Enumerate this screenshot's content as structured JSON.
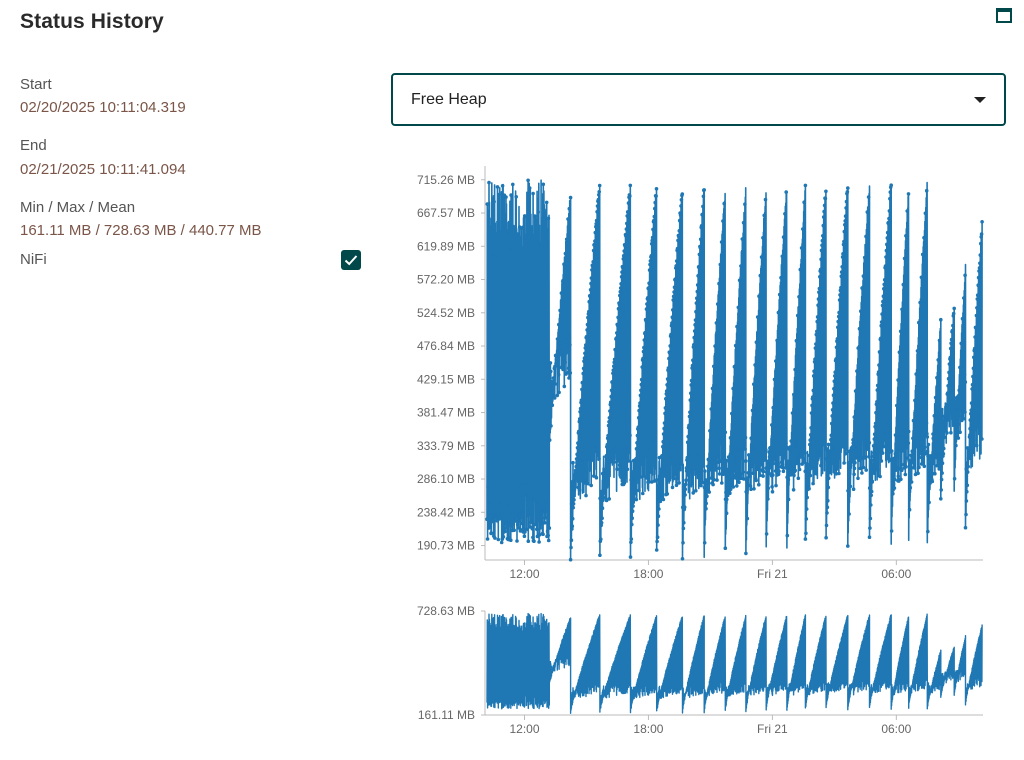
{
  "title": "Status History",
  "icons": {
    "maximize": "maximize-icon",
    "check": "check-icon",
    "dropdown": "chevron-down-icon"
  },
  "details": {
    "start_label": "Start",
    "start_value": "02/20/2025 10:11:04.319",
    "end_label": "End",
    "end_value": "02/21/2025 10:11:41.094",
    "stats_label": "Min / Max / Mean",
    "stats_value": "161.11 MB / 728.63 MB / 440.77 MB",
    "node_label": "NiFi",
    "node_checked": true
  },
  "metric_select": {
    "selected": "Free Heap"
  },
  "colors": {
    "accent": "#004849",
    "series": "#1f77b4",
    "value_text": "#7a5548"
  },
  "chart_data": [
    {
      "type": "line",
      "ylabel_ticks": [
        "190.73 MB",
        "238.42 MB",
        "286.10 MB",
        "333.79 MB",
        "381.47 MB",
        "429.15 MB",
        "476.84 MB",
        "524.52 MB",
        "572.20 MB",
        "619.89 MB",
        "667.57 MB",
        "715.26 MB"
      ],
      "ytick_values": [
        190.73,
        238.42,
        286.1,
        333.79,
        381.47,
        429.15,
        476.84,
        524.52,
        572.2,
        619.89,
        667.57,
        715.26
      ],
      "xtick_labels": [
        "12:00",
        "18:00",
        "Fri 21",
        "06:00"
      ],
      "xtick_hours": [
        12,
        18,
        24,
        30
      ],
      "x_range_hours": [
        10.185,
        34.195
      ],
      "ylim": [
        170,
        735
      ],
      "markers": true,
      "series": [
        {
          "min_mb": 161.11,
          "max_mb": 728.63,
          "mean_mb": 440.77,
          "phase1": {
            "until_hour": 13.2,
            "low_mb": [
              195,
              240
            ],
            "high_mb": [
              620,
              715
            ]
          },
          "gc_cycles": [
            {
              "start_hour": 13.2,
              "start_mb": 330,
              "end_hour": 14.23,
              "end_mb": 700
            },
            {
              "start_hour": 14.23,
              "start_mb": 180,
              "end_hour": 15.65,
              "end_mb": 715
            },
            {
              "start_hour": 15.65,
              "start_mb": 185,
              "end_hour": 17.13,
              "end_mb": 713
            },
            {
              "start_hour": 17.13,
              "start_mb": 182,
              "end_hour": 18.4,
              "end_mb": 712
            },
            {
              "start_hour": 18.4,
              "start_mb": 185,
              "end_hour": 19.65,
              "end_mb": 710
            },
            {
              "start_hour": 19.65,
              "start_mb": 182,
              "end_hour": 20.7,
              "end_mb": 712
            },
            {
              "start_hour": 20.7,
              "start_mb": 185,
              "end_hour": 21.72,
              "end_mb": 710
            },
            {
              "start_hour": 21.72,
              "start_mb": 190,
              "end_hour": 22.72,
              "end_mb": 712
            },
            {
              "start_hour": 22.72,
              "start_mb": 190,
              "end_hour": 23.7,
              "end_mb": 713
            },
            {
              "start_hour": 23.7,
              "start_mb": 195,
              "end_hour": 24.7,
              "end_mb": 713
            },
            {
              "start_hour": 24.7,
              "start_mb": 195,
              "end_hour": 25.6,
              "end_mb": 714
            },
            {
              "start_hour": 25.6,
              "start_mb": 200,
              "end_hour": 26.6,
              "end_mb": 713
            },
            {
              "start_hour": 26.6,
              "start_mb": 205,
              "end_hour": 27.65,
              "end_mb": 714
            },
            {
              "start_hour": 27.65,
              "start_mb": 200,
              "end_hour": 28.7,
              "end_mb": 713
            },
            {
              "start_hour": 28.7,
              "start_mb": 205,
              "end_hour": 29.75,
              "end_mb": 715
            },
            {
              "start_hour": 29.75,
              "start_mb": 200,
              "end_hour": 30.6,
              "end_mb": 712
            },
            {
              "start_hour": 30.6,
              "start_mb": 210,
              "end_hour": 31.5,
              "end_mb": 718
            },
            {
              "start_hour": 31.5,
              "start_mb": 205,
              "end_hour": 32.15,
              "end_mb": 520
            },
            {
              "start_hour": 32.15,
              "start_mb": 260,
              "end_hour": 32.8,
              "end_mb": 540
            },
            {
              "start_hour": 32.8,
              "start_mb": 270,
              "end_hour": 33.35,
              "end_mb": 600
            },
            {
              "start_hour": 33.35,
              "start_mb": 220,
              "end_hour": 34.15,
              "end_mb": 655
            }
          ]
        }
      ]
    },
    {
      "type": "area",
      "ylabel_ticks": [
        "161.11 MB",
        "728.63 MB"
      ],
      "ytick_values": [
        161.11,
        728.63
      ],
      "xtick_labels": [
        "12:00",
        "18:00",
        "Fri 21",
        "06:00"
      ],
      "xtick_hours": [
        12,
        18,
        24,
        30
      ],
      "x_range_hours": [
        10.185,
        34.195
      ],
      "ylim": [
        161.11,
        728.63
      ]
    }
  ]
}
